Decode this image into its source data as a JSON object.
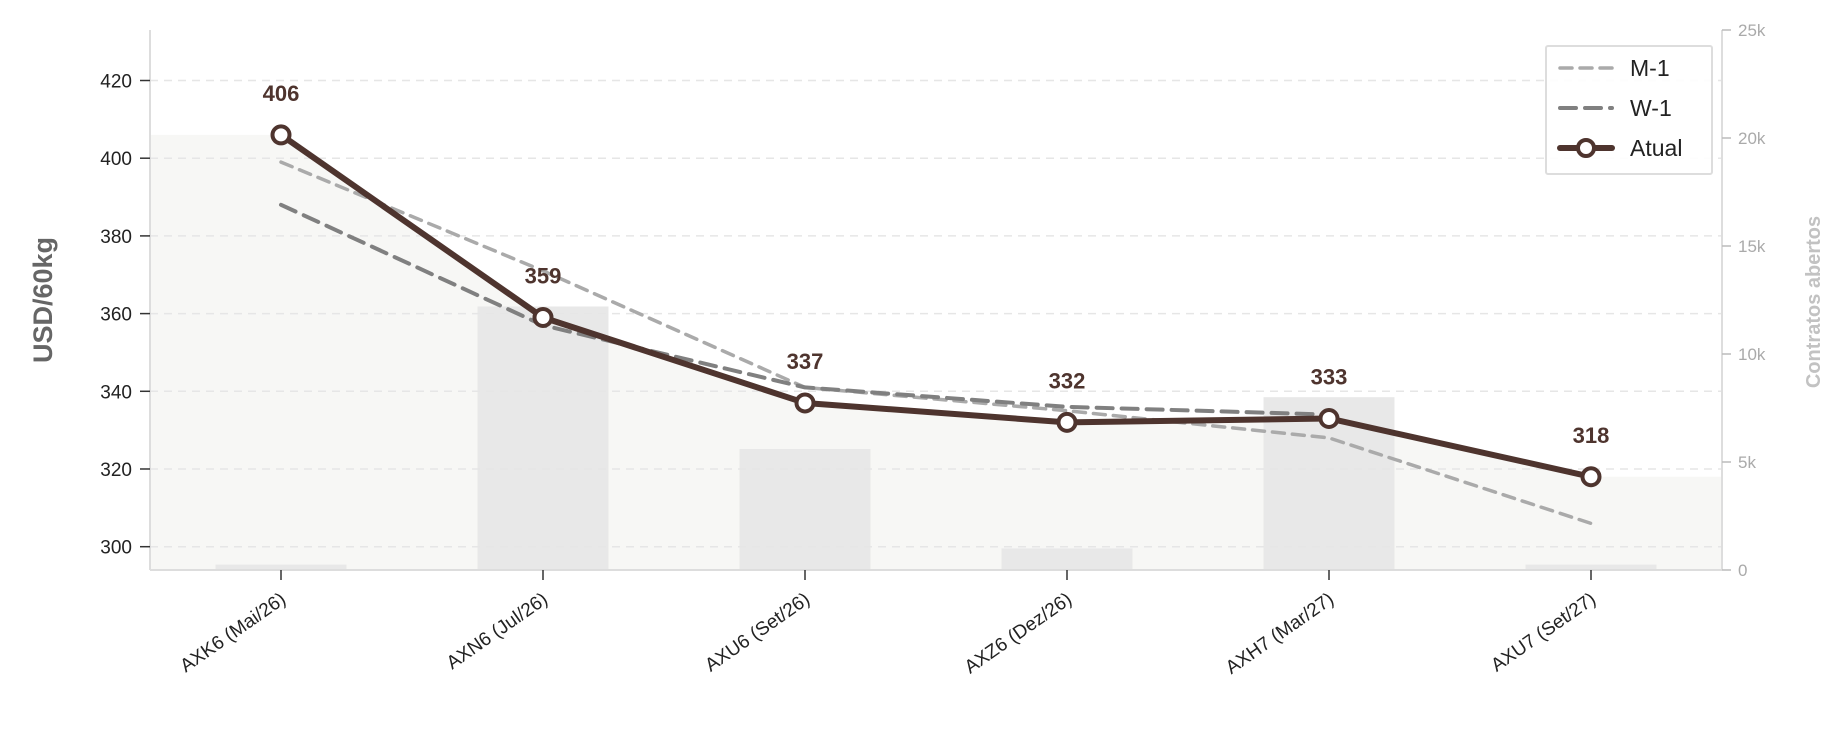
{
  "chart_data": {
    "type": "line",
    "categories": [
      "AXK6 (Mai/26)",
      "AXN6 (Jul/26)",
      "AXU6 (Set/26)",
      "AXZ6 (Dez/26)",
      "AXH7 (Mar/27)",
      "AXU7 (Set/27)"
    ],
    "series": [
      {
        "name": "M-1",
        "values": [
          399,
          371,
          341,
          335,
          328,
          306
        ],
        "style": "dashed-light",
        "color": "#aaaaaa"
      },
      {
        "name": "W-1",
        "values": [
          388,
          357,
          341,
          336,
          334,
          null
        ],
        "style": "dashed-dark",
        "color": "#808080"
      },
      {
        "name": "Atual",
        "values": [
          406,
          359,
          337,
          332,
          333,
          318
        ],
        "style": "solid-markers",
        "color": "#4e342e"
      }
    ],
    "data_labels": [
      "406",
      "359",
      "337",
      "332",
      "333",
      "318"
    ],
    "open_interest": {
      "values": [
        250,
        12200,
        5600,
        1000,
        8000,
        250
      ],
      "color": "#e8e8e8"
    },
    "ylabel": "USD/60kg",
    "y2label": "Contratos abertos",
    "ylim": [
      294,
      433
    ],
    "y_ticks": [
      300,
      320,
      340,
      360,
      380,
      400,
      420
    ],
    "y2lim": [
      0,
      25000
    ],
    "y2_ticks": [
      {
        "value": 0,
        "label": "0"
      },
      {
        "value": 5000,
        "label": "5k"
      },
      {
        "value": 10000,
        "label": "10k"
      },
      {
        "value": 15000,
        "label": "15k"
      },
      {
        "value": 20000,
        "label": "20k"
      },
      {
        "value": 25000,
        "label": "25k"
      }
    ],
    "grid": "horizontal-dashed",
    "legend_position": "top-right",
    "background_fill_color": "#f7f7f5"
  }
}
